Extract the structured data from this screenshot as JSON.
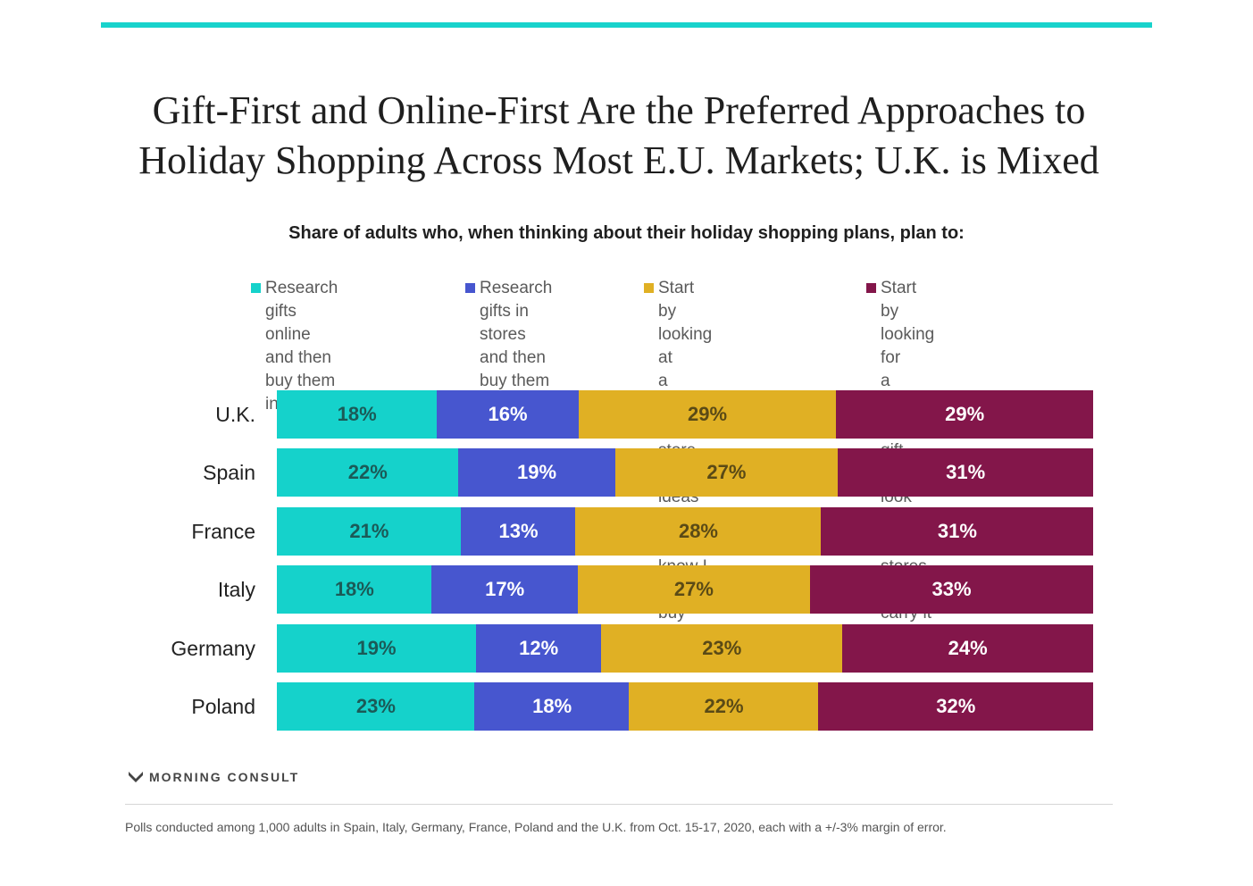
{
  "title_lines": [
    "Gift-First and Online-First Are the Preferred Approaches to",
    "Holiday Shopping Across Most E.U. Markets; U.K. is Mixed"
  ],
  "subtitle": "Share of adults who, when thinking about their holiday shopping plans, plan to:",
  "colors": {
    "accent": "#18d3cc"
  },
  "chart_data": {
    "type": "bar",
    "orientation": "horizontal",
    "stacked": true,
    "normalized": true,
    "title": "Gift-First and Online-First Are the Preferred Approaches to Holiday Shopping Across Most E.U. Markets; U.K. is Mixed",
    "subtitle": "Share of adults who, when thinking about their holiday shopping plans, plan to:",
    "categories": [
      "U.K.",
      "Spain",
      "France",
      "Italy",
      "Germany",
      "Poland"
    ],
    "series": [
      {
        "name": "Research gifts online and then buy them in store",
        "color": "#15d2cb",
        "text_color": "#1b5a57",
        "values": [
          18,
          22,
          21,
          18,
          19,
          23
        ]
      },
      {
        "name": "Research gifts in stores and then buy them online",
        "color": "#4756cf",
        "text_color": "#ffffff",
        "values": [
          16,
          19,
          13,
          17,
          12,
          18
        ]
      },
      {
        "name": "Start by looking at a specific site or store for gift ideas or gifts I know I want to buy",
        "color": "#e0b024",
        "text_color": "#5a4a16",
        "values": [
          29,
          27,
          28,
          27,
          23,
          22
        ]
      },
      {
        "name": "Start by looking for a certain type of gift, and look across sitesor stores that carry it",
        "color": "#83164a",
        "text_color": "#ffffff",
        "values": [
          29,
          31,
          31,
          33,
          24,
          32
        ]
      }
    ],
    "value_suffix": "%",
    "legend_position": "top"
  },
  "legend": [
    "Research gifts online\nand then buy them\nin store",
    "Research gifts in\nstores and then\nbuy them online",
    "Start by looking at\na specific site or store\nfor gift ideas or gifts I\nknow I want to buy",
    "Start by looking for\na certain type of gift,\nand look across sitesor\nstores that carry it"
  ],
  "brand": {
    "name": "MORNING CONSULT",
    "icon": "morning-consult-logo-icon"
  },
  "footnote": "Polls conducted among 1,000 adults in Spain, Italy, Germany, France, Poland and the U.K. from Oct. 15-17, 2020, each with a +/-3% margin of error."
}
